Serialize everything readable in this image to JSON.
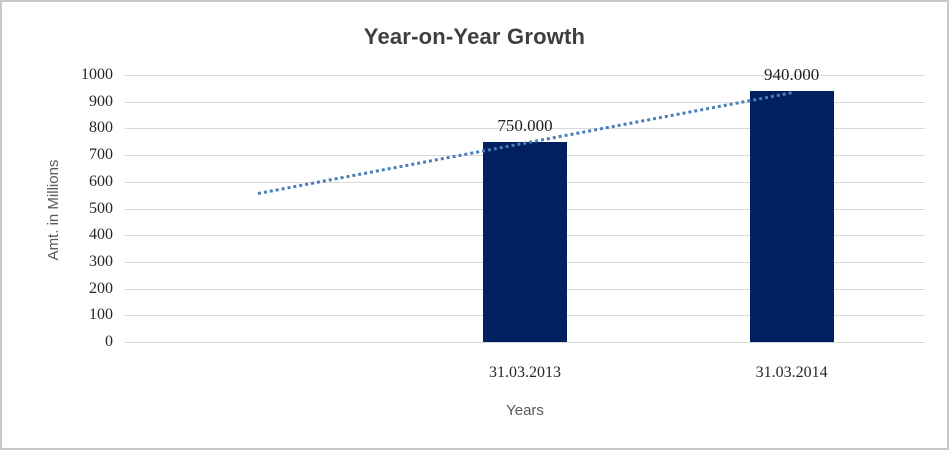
{
  "chart_data": {
    "type": "bar",
    "title": "Year-on-Year Growth",
    "xlabel": "Years",
    "ylabel": "Amt. in Millions",
    "ylim": [
      0,
      1000
    ],
    "ytick_step": 100,
    "yticks": [
      1000,
      900,
      800,
      700,
      600,
      500,
      400,
      300,
      200,
      100,
      0
    ],
    "grid": true,
    "legend": "none",
    "num_slots": 3,
    "categories": [
      "31.03.2013",
      "31.03.2014"
    ],
    "values": [
      750,
      940
    ],
    "bars": [
      {
        "slot": 1,
        "category": "31.03.2013",
        "value": 750,
        "data_label": "750.000"
      },
      {
        "slot": 2,
        "category": "31.03.2014",
        "value": 940,
        "data_label": "940.000"
      }
    ],
    "trendline": {
      "style": "dotted",
      "color": "#4a7ebb",
      "points": [
        {
          "slot": 0,
          "value": 558
        },
        {
          "slot": 2,
          "value": 935
        }
      ]
    },
    "bar_color": "#002060",
    "gridline_color": "#d9d9d9",
    "title_color": "#3f3f3f",
    "axis_title_color": "#595959",
    "tick_label_color": "#262626"
  }
}
